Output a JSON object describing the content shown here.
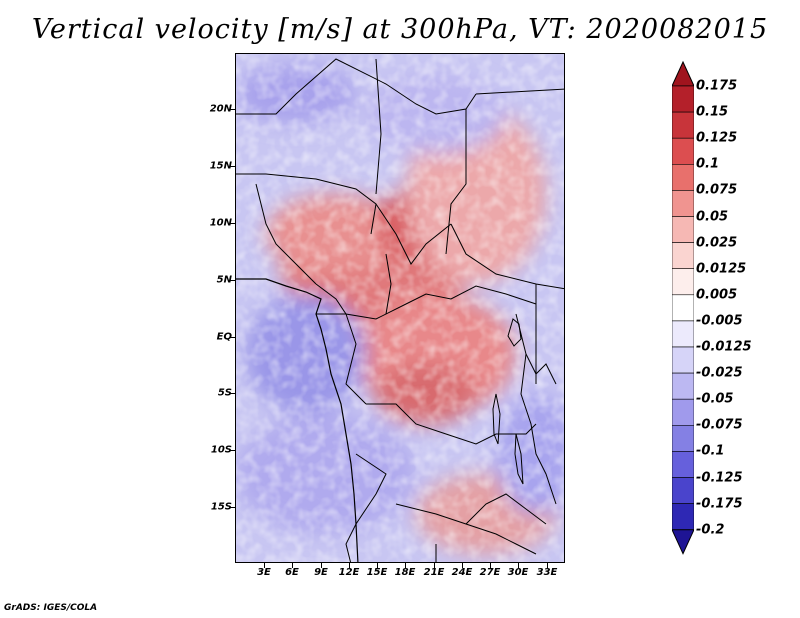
{
  "title": "Vertical velocity [m/s] at 300hPa, VT: 2020082015",
  "credit": "GrADS: IGES/COLA",
  "map": {
    "variable": "Vertical velocity",
    "units": "m/s",
    "level": "300hPa",
    "valid_time": "2020082015",
    "lat_ticks": [
      "20N",
      "15N",
      "10N",
      "5N",
      "EQ",
      "5S",
      "10S",
      "15S"
    ],
    "lon_ticks": [
      "3E",
      "6E",
      "9E",
      "12E",
      "15E",
      "18E",
      "21E",
      "24E",
      "27E",
      "30E",
      "33E"
    ]
  },
  "colorbar": {
    "labels": [
      "0.175",
      "0.15",
      "0.125",
      "0.1",
      "0.075",
      "0.05",
      "0.025",
      "0.0125",
      "0.005",
      "-0.005",
      "-0.0125",
      "-0.025",
      "-0.05",
      "-0.075",
      "-0.1",
      "-0.125",
      "-0.175",
      "-0.2"
    ],
    "colors": [
      "#a0141e",
      "#b4202a",
      "#c8343a",
      "#dc4e50",
      "#e8706c",
      "#f09490",
      "#f6b8b4",
      "#fad4d0",
      "#fdeeec",
      "#ffffff",
      "#eceafc",
      "#d6d4f8",
      "#bcb8f2",
      "#a09aec",
      "#8480e4",
      "#6660dc",
      "#4a44cc",
      "#2e28b4",
      "#1e1494"
    ]
  }
}
